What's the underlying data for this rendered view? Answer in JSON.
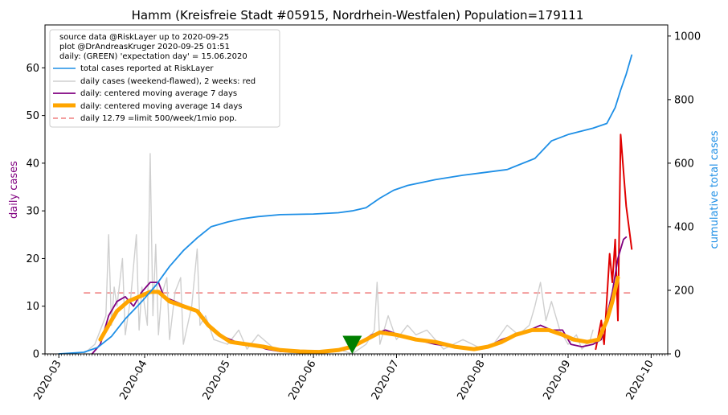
{
  "chart_data": {
    "type": "line",
    "title": "Hamm (Kreisfreie Stadt #05915, Nordrhein-Westfalen) Population=179111",
    "ylabel_left": "daily cases",
    "ylabel_right": "cumulative total cases",
    "ylim_left": [
      0,
      69
    ],
    "ylim_right": [
      0,
      1035
    ],
    "yticks_left": [
      "0",
      "10",
      "20",
      "30",
      "40",
      "50",
      "60"
    ],
    "yticks_right": [
      "0",
      "200",
      "400",
      "600",
      "800",
      "1000"
    ],
    "xticks": [
      "2020-03",
      "2020-04",
      "2020-05",
      "2020-06",
      "2020-07",
      "2020-08",
      "2020-09",
      "2020-10"
    ],
    "x_start": "2020-02-25",
    "x_end": "2020-10-07",
    "grid": false,
    "legend_position": "top-left",
    "legend_header": [
      "source data @RiskLayer up to 2020-09-25",
      "plot @DrAndreasKruger 2020-09-25 01:51",
      "daily: (GREEN) 'expectation day' = 15.06.2020"
    ],
    "legend_entries": [
      {
        "label": "total cases reported at RiskLayer",
        "color": "#1e8fe6",
        "style": "solid"
      },
      {
        "label": "daily cases (weekend-flawed), 2 weeks: red",
        "color": "#cfcfcf",
        "style": "solid"
      },
      {
        "label": "daily: centered moving average 7 days",
        "color": "#800080",
        "style": "solid"
      },
      {
        "label": "daily: centered moving average 14 days",
        "color": "#ffa500",
        "style": "thick"
      },
      {
        "label": "daily 12.79 =limit 500/week/1mio pop.",
        "color": "#f08080",
        "style": "dashed"
      }
    ],
    "limit_line": 12.79,
    "expectation_day": "2020-06-15",
    "series": [
      {
        "name": "total cases reported at RiskLayer",
        "axis": "right",
        "color": "#1e8fe6",
        "points": [
          [
            "2020-03-01",
            0
          ],
          [
            "2020-03-10",
            5
          ],
          [
            "2020-03-15",
            20
          ],
          [
            "2020-03-20",
            55
          ],
          [
            "2020-03-25",
            110
          ],
          [
            "2020-03-31",
            165
          ],
          [
            "2020-04-05",
            215
          ],
          [
            "2020-04-10",
            275
          ],
          [
            "2020-04-15",
            325
          ],
          [
            "2020-04-20",
            365
          ],
          [
            "2020-04-25",
            400
          ],
          [
            "2020-05-01",
            415
          ],
          [
            "2020-05-06",
            425
          ],
          [
            "2020-05-12",
            432
          ],
          [
            "2020-05-20",
            438
          ],
          [
            "2020-06-01",
            440
          ],
          [
            "2020-06-10",
            444
          ],
          [
            "2020-06-15",
            450
          ],
          [
            "2020-06-20",
            460
          ],
          [
            "2020-06-25",
            490
          ],
          [
            "2020-06-30",
            515
          ],
          [
            "2020-07-05",
            530
          ],
          [
            "2020-07-15",
            548
          ],
          [
            "2020-07-25",
            562
          ],
          [
            "2020-08-01",
            570
          ],
          [
            "2020-08-10",
            580
          ],
          [
            "2020-08-20",
            615
          ],
          [
            "2020-08-26",
            670
          ],
          [
            "2020-09-01",
            690
          ],
          [
            "2020-09-10",
            710
          ],
          [
            "2020-09-15",
            725
          ],
          [
            "2020-09-18",
            775
          ],
          [
            "2020-09-20",
            830
          ],
          [
            "2020-09-22",
            880
          ],
          [
            "2020-09-24",
            940
          ]
        ]
      },
      {
        "name": "daily cases (weekend-flawed), 2 weeks: red",
        "axis": "left",
        "color": "#cfcfcf",
        "points": [
          [
            "2020-03-10",
            0
          ],
          [
            "2020-03-14",
            2
          ],
          [
            "2020-03-16",
            5
          ],
          [
            "2020-03-18",
            8
          ],
          [
            "2020-03-19",
            25
          ],
          [
            "2020-03-20",
            6
          ],
          [
            "2020-03-21",
            14
          ],
          [
            "2020-03-22",
            10
          ],
          [
            "2020-03-24",
            20
          ],
          [
            "2020-03-25",
            4
          ],
          [
            "2020-03-27",
            12
          ],
          [
            "2020-03-29",
            25
          ],
          [
            "2020-03-30",
            5
          ],
          [
            "2020-03-31",
            14
          ],
          [
            "2020-04-02",
            6
          ],
          [
            "2020-04-03",
            42
          ],
          [
            "2020-04-04",
            8
          ],
          [
            "2020-04-05",
            23
          ],
          [
            "2020-04-06",
            4
          ],
          [
            "2020-04-07",
            12
          ],
          [
            "2020-04-09",
            16
          ],
          [
            "2020-04-10",
            3
          ],
          [
            "2020-04-12",
            13
          ],
          [
            "2020-04-14",
            16
          ],
          [
            "2020-04-15",
            2
          ],
          [
            "2020-04-18",
            10
          ],
          [
            "2020-04-20",
            22
          ],
          [
            "2020-04-21",
            6
          ],
          [
            "2020-04-23",
            8
          ],
          [
            "2020-04-26",
            3
          ],
          [
            "2020-05-01",
            2
          ],
          [
            "2020-05-05",
            5
          ],
          [
            "2020-05-08",
            1
          ],
          [
            "2020-05-12",
            4
          ],
          [
            "2020-05-18",
            1
          ],
          [
            "2020-05-25",
            0
          ],
          [
            "2020-06-05",
            0
          ],
          [
            "2020-06-10",
            1
          ],
          [
            "2020-06-15",
            0
          ],
          [
            "2020-06-20",
            2
          ],
          [
            "2020-06-23",
            5
          ],
          [
            "2020-06-24",
            15
          ],
          [
            "2020-06-25",
            2
          ],
          [
            "2020-06-28",
            8
          ],
          [
            "2020-07-01",
            3
          ],
          [
            "2020-07-05",
            6
          ],
          [
            "2020-07-08",
            4
          ],
          [
            "2020-07-12",
            5
          ],
          [
            "2020-07-18",
            1
          ],
          [
            "2020-07-25",
            3
          ],
          [
            "2020-08-01",
            1
          ],
          [
            "2020-08-05",
            2
          ],
          [
            "2020-08-10",
            6
          ],
          [
            "2020-08-14",
            4
          ],
          [
            "2020-08-18",
            6
          ],
          [
            "2020-08-20",
            10
          ],
          [
            "2020-08-22",
            15
          ],
          [
            "2020-08-24",
            7
          ],
          [
            "2020-08-26",
            11
          ],
          [
            "2020-08-29",
            5
          ],
          [
            "2020-09-01",
            2
          ],
          [
            "2020-09-04",
            4
          ],
          [
            "2020-09-06",
            1
          ],
          [
            "2020-09-09",
            3
          ],
          [
            "2020-09-10",
            5
          ]
        ]
      },
      {
        "name": "daily cases, last 2 weeks",
        "axis": "left",
        "color": "#e00000",
        "points": [
          [
            "2020-09-11",
            1
          ],
          [
            "2020-09-13",
            7
          ],
          [
            "2020-09-14",
            2
          ],
          [
            "2020-09-16",
            21
          ],
          [
            "2020-09-17",
            15
          ],
          [
            "2020-09-18",
            24
          ],
          [
            "2020-09-19",
            7
          ],
          [
            "2020-09-20",
            46
          ],
          [
            "2020-09-22",
            31
          ],
          [
            "2020-09-24",
            22
          ]
        ]
      },
      {
        "name": "daily: centered moving average 7 days",
        "axis": "left",
        "color": "#800080",
        "points": [
          [
            "2020-03-13",
            0
          ],
          [
            "2020-03-16",
            2
          ],
          [
            "2020-03-19",
            8
          ],
          [
            "2020-03-22",
            11
          ],
          [
            "2020-03-25",
            12
          ],
          [
            "2020-03-28",
            10
          ],
          [
            "2020-03-31",
            13
          ],
          [
            "2020-04-03",
            15
          ],
          [
            "2020-04-06",
            15
          ],
          [
            "2020-04-08",
            12
          ],
          [
            "2020-04-12",
            11
          ],
          [
            "2020-04-16",
            10
          ],
          [
            "2020-04-20",
            9
          ],
          [
            "2020-04-24",
            6
          ],
          [
            "2020-04-28",
            4
          ],
          [
            "2020-05-02",
            3
          ],
          [
            "2020-05-06",
            2
          ],
          [
            "2020-05-10",
            2
          ],
          [
            "2020-05-15",
            1
          ],
          [
            "2020-05-20",
            0.5
          ],
          [
            "2020-05-28",
            0.3
          ],
          [
            "2020-06-05",
            0.3
          ],
          [
            "2020-06-12",
            0.8
          ],
          [
            "2020-06-17",
            2
          ],
          [
            "2020-06-22",
            4
          ],
          [
            "2020-06-27",
            5
          ],
          [
            "2020-07-02",
            4
          ],
          [
            "2020-07-08",
            3
          ],
          [
            "2020-07-15",
            2
          ],
          [
            "2020-07-22",
            1.5
          ],
          [
            "2020-07-29",
            1
          ],
          [
            "2020-08-03",
            1.5
          ],
          [
            "2020-08-08",
            3
          ],
          [
            "2020-08-13",
            4
          ],
          [
            "2020-08-18",
            5
          ],
          [
            "2020-08-22",
            6
          ],
          [
            "2020-08-26",
            5
          ],
          [
            "2020-08-30",
            5
          ],
          [
            "2020-09-02",
            2
          ],
          [
            "2020-09-06",
            1.5
          ],
          [
            "2020-09-10",
            2
          ],
          [
            "2020-09-13",
            3
          ],
          [
            "2020-09-15",
            8
          ],
          [
            "2020-09-17",
            13
          ],
          [
            "2020-09-19",
            20
          ],
          [
            "2020-09-21",
            24
          ],
          [
            "2020-09-22",
            24.5
          ]
        ]
      },
      {
        "name": "daily: centered moving average 14 days",
        "axis": "left",
        "color": "#ffa500",
        "points": [
          [
            "2020-03-16",
            3
          ],
          [
            "2020-03-19",
            6
          ],
          [
            "2020-03-22",
            9
          ],
          [
            "2020-03-26",
            11
          ],
          [
            "2020-03-30",
            12
          ],
          [
            "2020-04-03",
            13
          ],
          [
            "2020-04-06",
            13
          ],
          [
            "2020-04-10",
            11
          ],
          [
            "2020-04-15",
            10
          ],
          [
            "2020-04-20",
            9
          ],
          [
            "2020-04-24",
            6
          ],
          [
            "2020-04-28",
            4
          ],
          [
            "2020-05-02",
            2.5
          ],
          [
            "2020-05-08",
            2
          ],
          [
            "2020-05-14",
            1.5
          ],
          [
            "2020-05-20",
            0.8
          ],
          [
            "2020-05-27",
            0.5
          ],
          [
            "2020-06-03",
            0.4
          ],
          [
            "2020-06-10",
            0.8
          ],
          [
            "2020-06-15",
            1.5
          ],
          [
            "2020-06-20",
            3
          ],
          [
            "2020-06-25",
            4.5
          ],
          [
            "2020-07-01",
            4
          ],
          [
            "2020-07-08",
            3
          ],
          [
            "2020-07-15",
            2.5
          ],
          [
            "2020-07-22",
            1.5
          ],
          [
            "2020-07-29",
            1
          ],
          [
            "2020-08-03",
            1.5
          ],
          [
            "2020-08-08",
            2.5
          ],
          [
            "2020-08-13",
            4
          ],
          [
            "2020-08-19",
            5
          ],
          [
            "2020-08-25",
            5
          ],
          [
            "2020-08-30",
            4
          ],
          [
            "2020-09-03",
            3
          ],
          [
            "2020-09-08",
            2.5
          ],
          [
            "2020-09-12",
            3
          ],
          [
            "2020-09-15",
            7
          ],
          [
            "2020-09-17",
            11
          ],
          [
            "2020-09-19",
            16
          ]
        ]
      }
    ]
  }
}
